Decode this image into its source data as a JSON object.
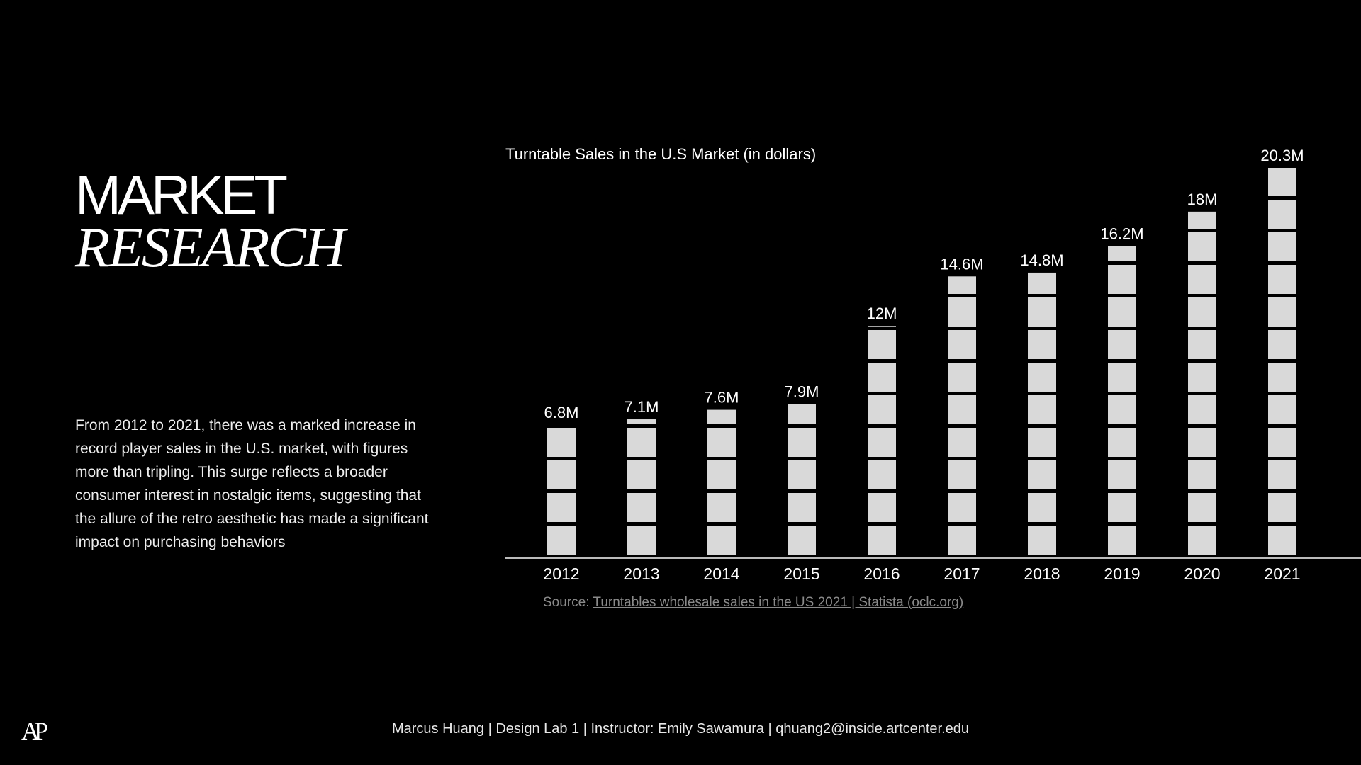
{
  "title": {
    "line1": "MARKET",
    "line2": "RESEARCH"
  },
  "description": "From 2012 to 2021, there was a marked increase in record player sales in the U.S. market, with figures more than tripling. This surge reflects a broader consumer interest in nostalgic items, suggesting that the allure of the retro aesthetic has made a significant impact on purchasing behaviors",
  "source": {
    "prefix": "Source: ",
    "link_text": "Turntables wholesale sales in the US 2021 | Statista (oclc.org)"
  },
  "footer": "Marcus Huang | Design Lab 1 | Instructor: Emily Sawamura | qhuang2@inside.artcenter.edu",
  "logo": "AP",
  "colors": {
    "background": "#000000",
    "bar": "#d9d9d9",
    "text": "#ffffff",
    "muted": "#8a8a8a"
  },
  "chart_data": {
    "type": "bar",
    "title": "Turntable Sales in the U.S Market (in dollars)",
    "categories": [
      "2012",
      "2013",
      "2014",
      "2015",
      "2016",
      "2017",
      "2018",
      "2019",
      "2020",
      "2021"
    ],
    "values": [
      6.8,
      7.1,
      7.6,
      7.9,
      12,
      14.6,
      14.8,
      16.2,
      18,
      20.3
    ],
    "data_labels": [
      "6.8M",
      "7.1M",
      "7.6M",
      "7.9M",
      "12M",
      "14.6M",
      "14.8M",
      "16.2M",
      "18M",
      "20.3M"
    ],
    "unit": "M",
    "ylim": [
      0,
      20.3
    ],
    "grid": false,
    "legend": "none",
    "bar_style": "segmented"
  }
}
